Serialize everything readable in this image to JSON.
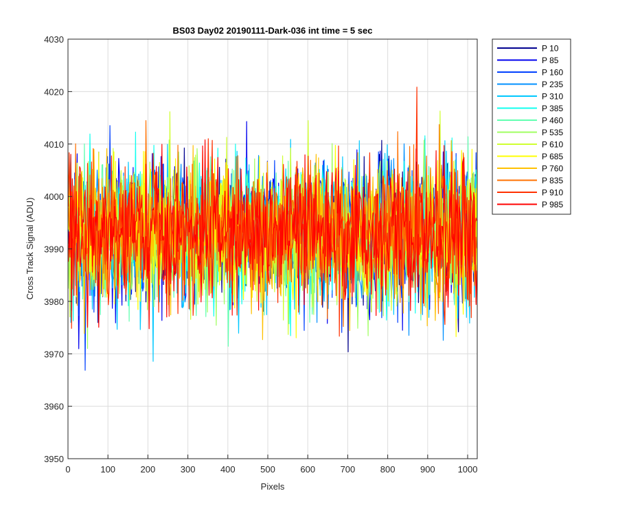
{
  "chart_data": {
    "type": "line",
    "title": "BS03 Day02 20190111-Dark-036 int time = 5 sec",
    "xlabel": "Pixels",
    "ylabel": "Cross Track Signal (ADU)",
    "xlim": [
      0,
      1024
    ],
    "ylim": [
      3950,
      4030
    ],
    "xticks": [
      0,
      100,
      200,
      300,
      400,
      500,
      600,
      700,
      800,
      900,
      1000
    ],
    "yticks": [
      3950,
      3960,
      3970,
      3980,
      3990,
      4000,
      4010,
      4020,
      4030
    ],
    "grid": true,
    "legend_position": "outside-top-right",
    "series_note_mean": 3993,
    "series": [
      {
        "name": "P 10",
        "color": "#00008f"
      },
      {
        "name": "P 85",
        "color": "#0000ef"
      },
      {
        "name": "P 160",
        "color": "#0040ff"
      },
      {
        "name": "P 235",
        "color": "#0090ff"
      },
      {
        "name": "P 310",
        "color": "#00c8ff"
      },
      {
        "name": "P 385",
        "color": "#10ffef"
      },
      {
        "name": "P 460",
        "color": "#60ffb0"
      },
      {
        "name": "P 535",
        "color": "#9fff60"
      },
      {
        "name": "P 610",
        "color": "#cfff30"
      },
      {
        "name": "P 685",
        "color": "#ffff00"
      },
      {
        "name": "P 760",
        "color": "#ffc000"
      },
      {
        "name": "P 835",
        "color": "#ff7000"
      },
      {
        "name": "P 910",
        "color": "#ff3000"
      },
      {
        "name": "P 985",
        "color": "#ff0000"
      }
    ]
  }
}
